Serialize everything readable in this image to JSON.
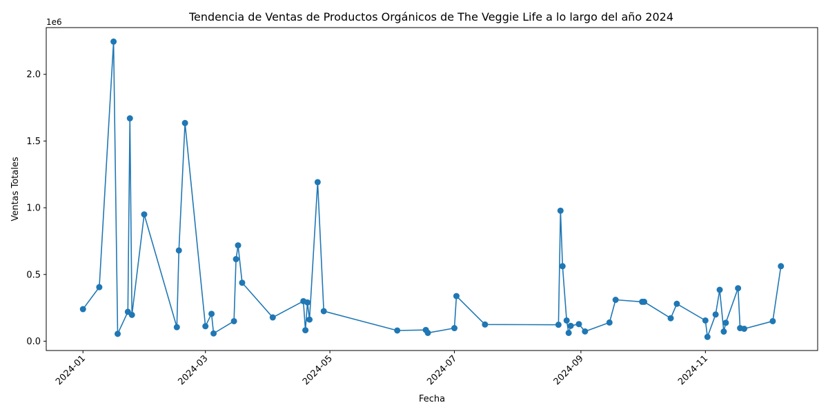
{
  "chart_data": {
    "type": "line",
    "title": "Tendencia de Ventas de Productos Orgánicos de The Veggie Life a lo largo del año 2024",
    "xlabel": "Fecha",
    "ylabel": "Ventas Totales",
    "y_offset_label": "1e6",
    "xlim": [
      "2023-12-14",
      "2024-12-26"
    ],
    "ylim": [
      -70000,
      2350000
    ],
    "x_ticks": [
      "2024-01-01",
      "2024-03-01",
      "2024-05-01",
      "2024-07-01",
      "2024-09-01",
      "2024-11-01"
    ],
    "x_tick_labels": [
      "2024-01",
      "2024-03",
      "2024-05",
      "2024-07",
      "2024-09",
      "2024-11"
    ],
    "y_ticks": [
      0,
      500000,
      1000000,
      1500000,
      2000000
    ],
    "y_tick_labels": [
      "0.0",
      "0.5",
      "1.0",
      "1.5",
      "2.0"
    ],
    "grid": false,
    "line_color": "#1f77b4",
    "marker": "circle",
    "series": [
      {
        "x": [
          "2024-01-01",
          "2024-01-09",
          "2024-01-16",
          "2024-01-18",
          "2024-01-23",
          "2024-01-24",
          "2024-01-25",
          "2024-01-31",
          "2024-02-16",
          "2024-02-17",
          "2024-02-20",
          "2024-03-01",
          "2024-03-04",
          "2024-03-05",
          "2024-03-15",
          "2024-03-16",
          "2024-03-17",
          "2024-03-19",
          "2024-04-03",
          "2024-04-18",
          "2024-04-19",
          "2024-04-20",
          "2024-04-21",
          "2024-04-25",
          "2024-04-28",
          "2024-06-03",
          "2024-06-17",
          "2024-06-18",
          "2024-07-01",
          "2024-07-02",
          "2024-07-16",
          "2024-08-21",
          "2024-08-22",
          "2024-08-23",
          "2024-08-25",
          "2024-08-26",
          "2024-08-27",
          "2024-08-31",
          "2024-09-03",
          "2024-09-15",
          "2024-09-18",
          "2024-10-01",
          "2024-10-02",
          "2024-10-15",
          "2024-10-18",
          "2024-11-01",
          "2024-11-02",
          "2024-11-06",
          "2024-11-08",
          "2024-11-10",
          "2024-11-11",
          "2024-11-17",
          "2024-11-18",
          "2024-11-20",
          "2024-12-04",
          "2024-12-08"
        ],
        "values": [
          240000,
          405000,
          2245000,
          55000,
          220000,
          1670000,
          197000,
          950000,
          105000,
          680000,
          1635000,
          112000,
          205000,
          58000,
          150000,
          615000,
          718000,
          438000,
          178000,
          300000,
          82000,
          290000,
          162000,
          1192000,
          225000,
          80000,
          84000,
          62000,
          98000,
          338000,
          125000,
          123000,
          978000,
          562000,
          155000,
          62000,
          115000,
          128000,
          73000,
          140000,
          310000,
          295000,
          295000,
          172000,
          280000,
          155000,
          32000,
          200000,
          385000,
          72000,
          138000,
          397000,
          98000,
          93000,
          150000,
          562000
        ]
      }
    ]
  }
}
